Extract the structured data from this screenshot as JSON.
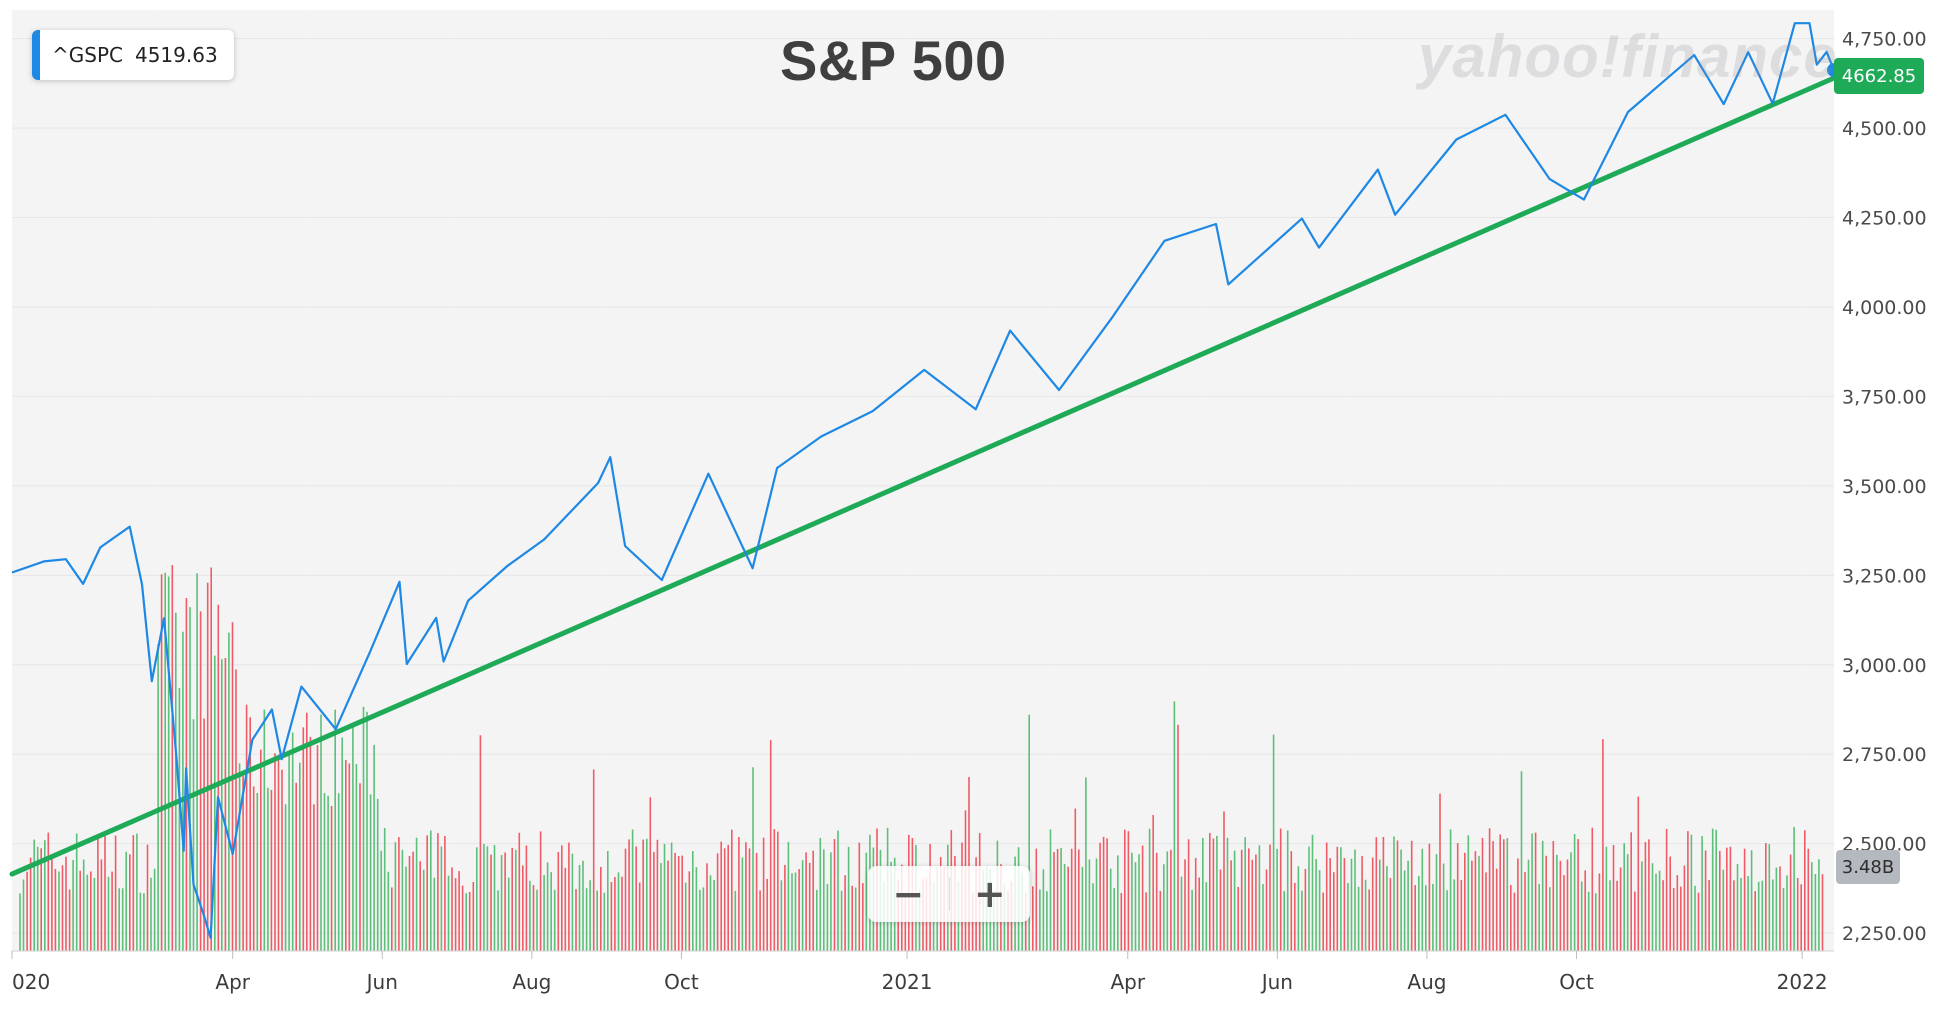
{
  "chart_data": {
    "type": "line",
    "title": "S&P 500",
    "brand": "yahoo!finance",
    "legend": {
      "symbol": "^GSPC",
      "value": "4519.63",
      "placement": "top-left"
    },
    "last_price_label": "4662.85",
    "volume_label": "3.48B",
    "zoom": {
      "out": "−",
      "in": "+"
    },
    "y_ticks": [
      "4,750.00",
      "4,500.00",
      "4,250.00",
      "4,000.00",
      "3,750.00",
      "3,500.00",
      "3,250.00",
      "3,000.00",
      "2,750.00",
      "2,500.00",
      "2,250.00"
    ],
    "x_ticks": [
      "020",
      "Apr",
      "Jun",
      "Aug",
      "Oct",
      "2021",
      "Apr",
      "Jun",
      "Aug",
      "Oct",
      "2022"
    ],
    "ylim": [
      2200,
      4830
    ],
    "xlim": [
      "2020-01-02",
      "2022-01-14"
    ],
    "price_series": {
      "name": "^GSPC",
      "color": "#1e88e5",
      "points": [
        [
          "2020-01-02",
          3258
        ],
        [
          "2020-01-15",
          3289
        ],
        [
          "2020-01-24",
          3295
        ],
        [
          "2020-01-31",
          3226
        ],
        [
          "2020-02-07",
          3328
        ],
        [
          "2020-02-19",
          3386
        ],
        [
          "2020-02-24",
          3225
        ],
        [
          "2020-02-28",
          2954
        ],
        [
          "2020-03-04",
          3130
        ],
        [
          "2020-03-09",
          2746
        ],
        [
          "2020-03-12",
          2480
        ],
        [
          "2020-03-13",
          2711
        ],
        [
          "2020-03-16",
          2386
        ],
        [
          "2020-03-20",
          2305
        ],
        [
          "2020-03-23",
          2237
        ],
        [
          "2020-03-26",
          2630
        ],
        [
          "2020-04-01",
          2471
        ],
        [
          "2020-04-09",
          2790
        ],
        [
          "2020-04-17",
          2875
        ],
        [
          "2020-04-21",
          2736
        ],
        [
          "2020-04-29",
          2939
        ],
        [
          "2020-05-13",
          2820
        ],
        [
          "2020-05-27",
          3036
        ],
        [
          "2020-06-08",
          3232
        ],
        [
          "2020-06-11",
          3002
        ],
        [
          "2020-06-23",
          3131
        ],
        [
          "2020-06-26",
          3009
        ],
        [
          "2020-07-06",
          3179
        ],
        [
          "2020-07-22",
          3276
        ],
        [
          "2020-08-06",
          3350
        ],
        [
          "2020-08-28",
          3508
        ],
        [
          "2020-09-02",
          3580
        ],
        [
          "2020-09-08",
          3332
        ],
        [
          "2020-09-23",
          3237
        ],
        [
          "2020-10-12",
          3534
        ],
        [
          "2020-10-30",
          3270
        ],
        [
          "2020-11-09",
          3550
        ],
        [
          "2020-11-27",
          3638
        ],
        [
          "2020-12-18",
          3709
        ],
        [
          "2021-01-08",
          3824
        ],
        [
          "2021-01-29",
          3714
        ],
        [
          "2021-02-12",
          3934
        ],
        [
          "2021-03-04",
          3768
        ],
        [
          "2021-03-26",
          3974
        ],
        [
          "2021-04-16",
          4185
        ],
        [
          "2021-05-07",
          4232
        ],
        [
          "2021-05-12",
          4063
        ],
        [
          "2021-06-11",
          4247
        ],
        [
          "2021-06-18",
          4166
        ],
        [
          "2021-07-12",
          4384
        ],
        [
          "2021-07-19",
          4258
        ],
        [
          "2021-08-13",
          4468
        ],
        [
          "2021-09-02",
          4537
        ],
        [
          "2021-09-20",
          4358
        ],
        [
          "2021-10-04",
          4300
        ],
        [
          "2021-10-22",
          4545
        ],
        [
          "2021-11-18",
          4704
        ],
        [
          "2021-11-30",
          4567
        ],
        [
          "2021-12-10",
          4712
        ],
        [
          "2021-12-20",
          4568
        ],
        [
          "2021-12-29",
          4793
        ],
        [
          "2022-01-04",
          4793
        ],
        [
          "2022-01-07",
          4677
        ],
        [
          "2022-01-11",
          4713
        ],
        [
          "2022-01-14",
          4662
        ]
      ]
    },
    "trend_line": {
      "color": "#1faa58",
      "points": [
        [
          "2020-01-02",
          2415
        ],
        [
          "2022-01-14",
          4640
        ]
      ]
    },
    "volume_bars": {
      "up_color": "#5cbf7a",
      "down_color": "#ef5b66",
      "ylim": [
        0,
        12
      ]
    },
    "grid": true
  }
}
